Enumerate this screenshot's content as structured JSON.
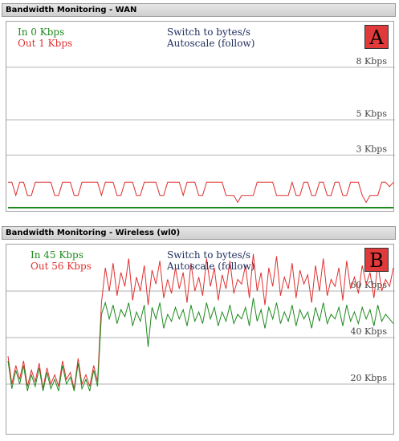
{
  "panels": [
    {
      "id": "A",
      "header": "Bandwidth Monitoring - WAN",
      "badge": "A",
      "legend": {
        "in_label": "In",
        "in_value": "0 Kbps",
        "out_label": "Out",
        "out_value": "1 Kbps"
      },
      "switch_label": "Switch to bytes/s",
      "autoscale_label": "Autoscale (follow)"
    },
    {
      "id": "B",
      "header": "Bandwidth Monitoring - Wireless (wl0)",
      "badge": "B",
      "legend": {
        "in_label": "In",
        "in_value": "45 Kbps",
        "out_label": "Out",
        "out_value": "56 Kbps"
      },
      "switch_label": "Switch to bytes/s",
      "autoscale_label": "Autoscale (follow)"
    }
  ],
  "colors": {
    "in": "#1e8a1e",
    "out": "#e03030",
    "grid": "#b0b0b0",
    "badge": "#e03a3a"
  },
  "chart_data": [
    {
      "type": "line",
      "panel": "A",
      "unit": "Kbps",
      "ylim": [
        0,
        10.6
      ],
      "y_ticks": [
        {
          "value": 8,
          "label": "8 Kbps"
        },
        {
          "value": 5,
          "label": "5 Kbps"
        },
        {
          "value": 3,
          "label": "3 Kbps"
        }
      ],
      "grid": true,
      "series": [
        {
          "name": "In",
          "color": "#1e8a1e",
          "values": [
            0,
            0,
            0,
            0,
            0,
            0,
            0,
            0,
            0,
            0,
            0,
            0,
            0,
            0,
            0,
            0,
            0,
            0,
            0,
            0,
            0,
            0,
            0,
            0,
            0,
            0,
            0,
            0,
            0,
            0,
            0,
            0,
            0,
            0,
            0,
            0,
            0,
            0,
            0,
            0,
            0,
            0,
            0,
            0,
            0,
            0,
            0,
            0,
            0,
            0,
            0,
            0,
            0,
            0,
            0,
            0,
            0,
            0,
            0,
            0,
            0,
            0,
            0,
            0,
            0,
            0,
            0,
            0,
            0,
            0,
            0,
            0,
            0,
            0,
            0,
            0,
            0,
            0,
            0,
            0,
            0,
            0,
            0,
            0,
            0,
            0,
            0,
            0,
            0,
            0,
            0,
            0,
            0,
            0,
            0,
            0,
            0,
            0,
            0,
            0
          ]
        },
        {
          "name": "Out",
          "color": "#e03030",
          "values": [
            1.45,
            1.45,
            0.7,
            1.45,
            1.45,
            0.7,
            0.7,
            1.45,
            1.45,
            1.45,
            1.45,
            1.45,
            0.7,
            0.7,
            1.45,
            1.45,
            1.45,
            0.7,
            0.7,
            1.45,
            1.45,
            1.45,
            1.45,
            1.45,
            0.7,
            1.45,
            1.45,
            1.45,
            0.7,
            0.7,
            1.45,
            1.45,
            1.45,
            0.7,
            0.7,
            1.45,
            1.45,
            1.45,
            1.45,
            0.7,
            0.7,
            1.45,
            1.45,
            1.45,
            1.45,
            0.7,
            1.45,
            1.45,
            1.45,
            0.7,
            0.7,
            1.45,
            1.45,
            1.45,
            1.45,
            1.45,
            0.7,
            0.7,
            0.7,
            0.3,
            0.7,
            0.7,
            0.7,
            0.7,
            1.45,
            1.45,
            1.45,
            1.45,
            1.45,
            0.7,
            0.7,
            0.7,
            0.7,
            1.45,
            0.7,
            0.7,
            1.45,
            1.45,
            0.7,
            0.7,
            1.45,
            1.45,
            0.7,
            0.7,
            1.45,
            1.45,
            0.7,
            0.7,
            1.45,
            1.45,
            1.45,
            0.7,
            0.3,
            0.7,
            0.7,
            0.7,
            1.45,
            1.45,
            1.2,
            1.45
          ]
        }
      ]
    },
    {
      "type": "line",
      "panel": "B",
      "unit": "Kbps",
      "ylim": [
        0,
        80
      ],
      "y_ticks": [
        {
          "value": 60,
          "label": "60 Kbps"
        },
        {
          "value": 40,
          "label": "40 Kbps"
        },
        {
          "value": 20,
          "label": "20 Kbps"
        }
      ],
      "grid": true,
      "series": [
        {
          "name": "Out",
          "color": "#e03030",
          "values": [
            32,
            20,
            28,
            22,
            30,
            19,
            26,
            21,
            29,
            18,
            27,
            20,
            24,
            19,
            30,
            22,
            25,
            18,
            31,
            20,
            24,
            19,
            28,
            21,
            55,
            70,
            60,
            72,
            58,
            68,
            62,
            74,
            56,
            66,
            60,
            71,
            54,
            69,
            63,
            73,
            57,
            65,
            59,
            70,
            61,
            68,
            55,
            72,
            60,
            66,
            58,
            74,
            62,
            70,
            56,
            67,
            61,
            73,
            59,
            65,
            63,
            71,
            57,
            76,
            60,
            68,
            54,
            70,
            62,
            75,
            58,
            66,
            61,
            72,
            57,
            69,
            63,
            67,
            55,
            71,
            60,
            74,
            58,
            65,
            62,
            70,
            56,
            73,
            61,
            66,
            59,
            71,
            63,
            68,
            57,
            72,
            60,
            65,
            62,
            70
          ]
        },
        {
          "name": "In",
          "color": "#1e8a1e",
          "values": [
            30,
            18,
            26,
            20,
            28,
            17,
            24,
            19,
            27,
            17,
            25,
            18,
            22,
            17,
            28,
            20,
            23,
            17,
            29,
            18,
            22,
            17,
            26,
            19,
            50,
            55,
            48,
            54,
            46,
            52,
            49,
            55,
            45,
            51,
            47,
            54,
            36,
            53,
            48,
            55,
            44,
            50,
            47,
            53,
            48,
            52,
            45,
            54,
            47,
            51,
            46,
            55,
            48,
            53,
            45,
            51,
            47,
            54,
            46,
            50,
            48,
            53,
            45,
            57,
            47,
            52,
            44,
            53,
            48,
            55,
            46,
            51,
            47,
            54,
            45,
            52,
            48,
            51,
            44,
            53,
            47,
            55,
            46,
            50,
            48,
            53,
            45,
            54,
            47,
            51,
            46,
            53,
            48,
            52,
            45,
            54,
            47,
            50,
            48,
            46
          ]
        }
      ]
    }
  ]
}
